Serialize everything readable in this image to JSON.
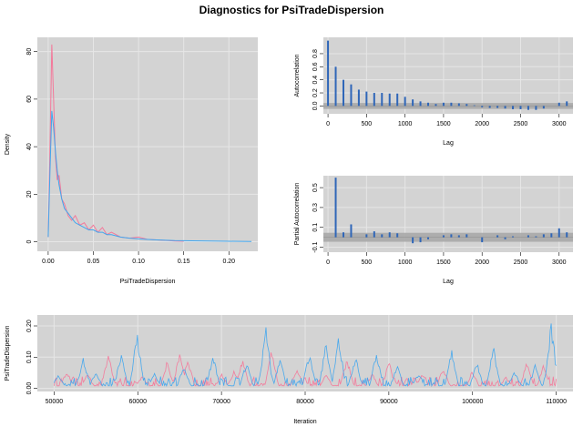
{
  "title": "Diagnostics for PsiTradeDispersion",
  "colors": {
    "chain1": "#f4789a",
    "chain2": "#41a6ee",
    "panel": "#d3d3d3",
    "grid": "#e6e6e6",
    "band": "#a9a9a9",
    "bar": "#2f66b8"
  },
  "chart_data": [
    {
      "type": "line",
      "name": "density",
      "xlabel": "PsiTradeDispersion",
      "ylabel": "Density",
      "xlim": [
        -0.012,
        0.232
      ],
      "ylim": [
        -4,
        86
      ],
      "xticks": [
        0.0,
        0.05,
        0.1,
        0.15,
        0.2
      ],
      "xtick_labels": [
        "0.00",
        "0.05",
        "0.10",
        "0.15",
        "0.20"
      ],
      "yticks": [
        0,
        20,
        40,
        60,
        80
      ],
      "ytick_labels": [
        "0",
        "20",
        "40",
        "60",
        "80"
      ],
      "series": [
        {
          "color": "pink",
          "x": [
            0.0,
            0.002,
            0.004,
            0.006,
            0.008,
            0.01,
            0.012,
            0.015,
            0.018,
            0.022,
            0.026,
            0.03,
            0.035,
            0.04,
            0.045,
            0.05,
            0.055,
            0.06,
            0.065,
            0.07,
            0.08,
            0.09,
            0.1,
            0.11,
            0.12,
            0.13,
            0.14,
            0.15
          ],
          "y": [
            2,
            40,
            83,
            60,
            36,
            26,
            28,
            18,
            16,
            11,
            9,
            11,
            7,
            8,
            5,
            7,
            4,
            6,
            3,
            4,
            2,
            1.5,
            2,
            1,
            0.8,
            0.6,
            0.3,
            0.2
          ]
        },
        {
          "color": "blue",
          "x": [
            0.0,
            0.002,
            0.004,
            0.006,
            0.008,
            0.01,
            0.012,
            0.015,
            0.018,
            0.022,
            0.026,
            0.03,
            0.035,
            0.04,
            0.045,
            0.05,
            0.055,
            0.06,
            0.065,
            0.07,
            0.08,
            0.09,
            0.1,
            0.11,
            0.12,
            0.14,
            0.16,
            0.18,
            0.2,
            0.225
          ],
          "y": [
            2,
            30,
            55,
            48,
            38,
            30,
            24,
            18,
            14,
            12,
            10,
            8,
            7,
            6,
            5,
            5,
            4,
            4,
            3,
            3,
            2,
            1.5,
            1.2,
            1,
            0.8,
            0.5,
            0.4,
            0.3,
            0.2,
            0.1
          ]
        }
      ]
    },
    {
      "type": "bar",
      "name": "autocorrelation",
      "xlabel": "Lag",
      "ylabel": "Autocorrelation",
      "xlim": [
        -60,
        3180
      ],
      "ylim": [
        -0.12,
        1.05
      ],
      "xticks": [
        0,
        500,
        1000,
        1500,
        2000,
        2500,
        3000
      ],
      "xtick_labels": [
        "0",
        "500",
        "1000",
        "1500",
        "2000",
        "2500",
        "3000"
      ],
      "yticks": [
        0.0,
        0.2,
        0.4,
        0.6,
        0.8
      ],
      "ytick_labels": [
        "0.0",
        "0.2",
        "0.4",
        "0.6",
        "0.8"
      ],
      "ci": [
        -0.045,
        0.045
      ],
      "lags": [
        0,
        100,
        200,
        300,
        400,
        500,
        600,
        700,
        800,
        900,
        1000,
        1100,
        1200,
        1300,
        1400,
        1500,
        1600,
        1700,
        1800,
        1900,
        2000,
        2100,
        2200,
        2300,
        2400,
        2500,
        2600,
        2700,
        2800,
        2900,
        3000,
        3100
      ],
      "values": [
        1.0,
        0.6,
        0.4,
        0.33,
        0.25,
        0.22,
        0.2,
        0.2,
        0.19,
        0.19,
        0.14,
        0.1,
        0.07,
        0.05,
        0.03,
        0.05,
        0.05,
        0.04,
        0.03,
        0.01,
        -0.02,
        -0.03,
        -0.03,
        -0.04,
        -0.05,
        -0.05,
        -0.06,
        -0.06,
        -0.04,
        0.0,
        0.05,
        0.07
      ]
    },
    {
      "type": "bar",
      "name": "partial-autocorrelation",
      "xlabel": "Lag",
      "ylabel": "Partial Autocorrelation",
      "xlim": [
        -60,
        3180
      ],
      "ylim": [
        -0.15,
        0.62
      ],
      "xticks": [
        0,
        500,
        1000,
        1500,
        2000,
        2500,
        3000
      ],
      "xtick_labels": [
        "0",
        "500",
        "1000",
        "1500",
        "2000",
        "2500",
        "3000"
      ],
      "yticks": [
        -0.1,
        0.1,
        0.3,
        0.5
      ],
      "ytick_labels": [
        "-0.1",
        "0.1",
        "0.3",
        "0.5"
      ],
      "ci": [
        -0.045,
        0.045
      ],
      "lags": [
        100,
        200,
        300,
        400,
        500,
        600,
        700,
        800,
        900,
        1000,
        1100,
        1200,
        1300,
        1400,
        1500,
        1600,
        1700,
        1800,
        1900,
        2000,
        2100,
        2200,
        2300,
        2400,
        2500,
        2600,
        2700,
        2800,
        2900,
        3000,
        3100
      ],
      "values": [
        0.6,
        0.05,
        0.13,
        0.0,
        0.03,
        0.06,
        0.03,
        0.05,
        0.04,
        0.0,
        -0.06,
        -0.05,
        -0.02,
        0.0,
        0.02,
        0.03,
        0.02,
        0.03,
        0.0,
        -0.05,
        0.0,
        0.02,
        -0.02,
        0.01,
        0.0,
        0.02,
        0.01,
        0.03,
        0.04,
        0.09,
        0.05
      ]
    },
    {
      "type": "line",
      "name": "trace",
      "xlabel": "Iteration",
      "ylabel": "PsiTradeDispersion",
      "xlim": [
        48000,
        112000
      ],
      "ylim": [
        -0.01,
        0.235
      ],
      "xticks": [
        50000,
        60000,
        70000,
        80000,
        90000,
        100000,
        110000
      ],
      "xtick_labels": [
        "50000",
        "60000",
        "70000",
        "80000",
        "90000",
        "100000",
        "110000"
      ],
      "yticks": [
        0.0,
        0.1,
        0.2
      ],
      "ytick_labels": [
        "0.00",
        "0.10",
        "0.20"
      ],
      "x_range": [
        50000,
        110000
      ],
      "series": [
        {
          "color": "pink",
          "peaks": [
            [
              51500,
              0.06
            ],
            [
              54000,
              0.05
            ],
            [
              56500,
              0.12
            ],
            [
              60500,
              0.04
            ],
            [
              63500,
              0.09
            ],
            [
              65000,
              0.12
            ],
            [
              66000,
              0.1
            ],
            [
              70000,
              0.05
            ],
            [
              71500,
              0.06
            ],
            [
              72500,
              0.1
            ],
            [
              76000,
              0.13
            ],
            [
              79000,
              0.07
            ],
            [
              82500,
              0.05
            ],
            [
              85000,
              0.1
            ],
            [
              88000,
              0.05
            ],
            [
              90000,
              0.09
            ],
            [
              94000,
              0.05
            ],
            [
              96500,
              0.07
            ],
            [
              100000,
              0.06
            ],
            [
              104000,
              0.04
            ],
            [
              106500,
              0.09
            ],
            [
              108500,
              0.08
            ]
          ]
        },
        {
          "color": "blue",
          "peaks": [
            [
              50500,
              0.05
            ],
            [
              53500,
              0.1
            ],
            [
              55000,
              0.06
            ],
            [
              58000,
              0.12
            ],
            [
              59900,
              0.19
            ],
            [
              62000,
              0.05
            ],
            [
              65500,
              0.08
            ],
            [
              69000,
              0.11
            ],
            [
              73000,
              0.09
            ],
            [
              75300,
              0.2
            ],
            [
              77000,
              0.1
            ],
            [
              80500,
              0.12
            ],
            [
              82500,
              0.15
            ],
            [
              84000,
              0.17
            ],
            [
              86000,
              0.11
            ],
            [
              88500,
              0.12
            ],
            [
              91000,
              0.08
            ],
            [
              93500,
              0.05
            ],
            [
              97500,
              0.13
            ],
            [
              100500,
              0.09
            ],
            [
              102500,
              0.14
            ],
            [
              105000,
              0.06
            ],
            [
              107500,
              0.08
            ],
            [
              109400,
              0.22
            ]
          ]
        }
      ]
    }
  ]
}
